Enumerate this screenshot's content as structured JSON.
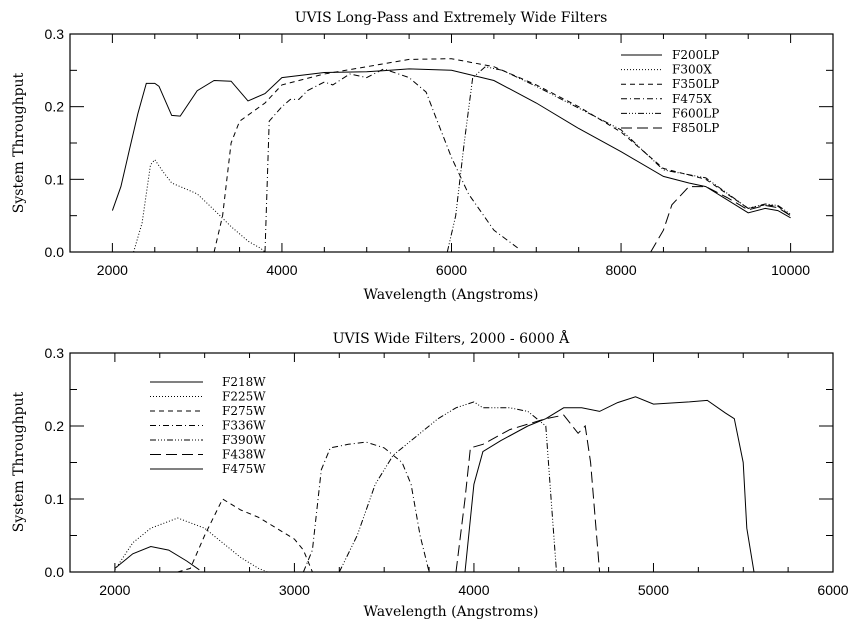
{
  "chart_data": [
    {
      "type": "line",
      "title": "UVIS Long-Pass and Extremely Wide Filters",
      "xlabel": "Wavelength (Angstroms)",
      "ylabel": "System Throughput",
      "xlim": [
        1500,
        10500
      ],
      "ylim": [
        0,
        0.3
      ],
      "xticks": [
        2000,
        4000,
        6000,
        8000,
        10000
      ],
      "xtick_labels": [
        "2000",
        "4000",
        "6000",
        "8000",
        "10000"
      ],
      "yticks": [
        0,
        0.1,
        0.2,
        0.3
      ],
      "ytick_labels": [
        "0.0",
        "0.1",
        "0.2",
        "0.3"
      ],
      "x_minor_step": 500,
      "y_minor_step": 0.05,
      "legend_position": "top-right",
      "series": [
        {
          "name": "F200LP",
          "style": "solid",
          "points": [
            [
              2000,
              0.057
            ],
            [
              2100,
              0.09
            ],
            [
              2200,
              0.14
            ],
            [
              2300,
              0.19
            ],
            [
              2400,
              0.232
            ],
            [
              2500,
              0.232
            ],
            [
              2550,
              0.228
            ],
            [
              2700,
              0.188
            ],
            [
              2800,
              0.187
            ],
            [
              3000,
              0.222
            ],
            [
              3200,
              0.236
            ],
            [
              3400,
              0.235
            ],
            [
              3600,
              0.208
            ],
            [
              3800,
              0.218
            ],
            [
              4000,
              0.24
            ],
            [
              4500,
              0.247
            ],
            [
              5000,
              0.248
            ],
            [
              5500,
              0.252
            ],
            [
              6000,
              0.25
            ],
            [
              6500,
              0.236
            ],
            [
              7000,
              0.205
            ],
            [
              7500,
              0.17
            ],
            [
              8000,
              0.138
            ],
            [
              8500,
              0.104
            ],
            [
              8800,
              0.095
            ],
            [
              9000,
              0.09
            ],
            [
              9500,
              0.054
            ],
            [
              9700,
              0.06
            ],
            [
              9850,
              0.057
            ],
            [
              10000,
              0.047
            ]
          ]
        },
        {
          "name": "F300X",
          "style": "dotted",
          "points": [
            [
              2250,
              0
            ],
            [
              2350,
              0.04
            ],
            [
              2450,
              0.12
            ],
            [
              2500,
              0.127
            ],
            [
              2600,
              0.11
            ],
            [
              2700,
              0.095
            ],
            [
              2900,
              0.085
            ],
            [
              3000,
              0.08
            ],
            [
              3200,
              0.058
            ],
            [
              3400,
              0.035
            ],
            [
              3600,
              0.015
            ],
            [
              3750,
              0.005
            ],
            [
              3800,
              0
            ]
          ]
        },
        {
          "name": "F350LP",
          "style": "dashed",
          "points": [
            [
              3200,
              0
            ],
            [
              3300,
              0.05
            ],
            [
              3400,
              0.15
            ],
            [
              3500,
              0.18
            ],
            [
              3800,
              0.205
            ],
            [
              4000,
              0.23
            ],
            [
              4500,
              0.245
            ],
            [
              5000,
              0.255
            ],
            [
              5500,
              0.265
            ],
            [
              6000,
              0.266
            ],
            [
              6500,
              0.255
            ],
            [
              7000,
              0.23
            ],
            [
              7500,
              0.2
            ],
            [
              8000,
              0.165
            ],
            [
              8500,
              0.115
            ],
            [
              9000,
              0.1
            ],
            [
              9500,
              0.06
            ],
            [
              9700,
              0.065
            ],
            [
              9850,
              0.063
            ],
            [
              10000,
              0.05
            ]
          ]
        },
        {
          "name": "F475X",
          "style": "dash-dot",
          "points": [
            [
              3800,
              0
            ],
            [
              3850,
              0.18
            ],
            [
              4000,
              0.2
            ],
            [
              4100,
              0.21
            ],
            [
              4200,
              0.21
            ],
            [
              4300,
              0.222
            ],
            [
              4500,
              0.234
            ],
            [
              4600,
              0.23
            ],
            [
              4800,
              0.245
            ],
            [
              5000,
              0.24
            ],
            [
              5200,
              0.252
            ],
            [
              5500,
              0.24
            ],
            [
              5700,
              0.22
            ],
            [
              5800,
              0.19
            ],
            [
              6000,
              0.13
            ],
            [
              6200,
              0.08
            ],
            [
              6500,
              0.03
            ],
            [
              6800,
              0.004
            ]
          ]
        },
        {
          "name": "F600LP",
          "style": "dash-dot-dot",
          "points": [
            [
              5950,
              0
            ],
            [
              6050,
              0.05
            ],
            [
              6150,
              0.15
            ],
            [
              6250,
              0.24
            ],
            [
              6400,
              0.255
            ],
            [
              6600,
              0.25
            ],
            [
              7000,
              0.228
            ],
            [
              7500,
              0.198
            ],
            [
              8000,
              0.168
            ],
            [
              8500,
              0.113
            ],
            [
              9000,
              0.102
            ],
            [
              9500,
              0.06
            ],
            [
              9700,
              0.066
            ],
            [
              9850,
              0.064
            ],
            [
              10000,
              0.052
            ]
          ]
        },
        {
          "name": "F850LP",
          "style": "long-dash",
          "points": [
            [
              8350,
              0
            ],
            [
              8500,
              0.03
            ],
            [
              8600,
              0.065
            ],
            [
              8800,
              0.09
            ],
            [
              9000,
              0.09
            ],
            [
              9250,
              0.075
            ],
            [
              9500,
              0.058
            ],
            [
              9700,
              0.064
            ],
            [
              9850,
              0.061
            ],
            [
              10000,
              0.05
            ]
          ]
        }
      ]
    },
    {
      "type": "line",
      "title": "UVIS Wide Filters, 2000 - 6000 Å",
      "xlabel": "Wavelength (Angstroms)",
      "ylabel": "System Throughput",
      "xlim": [
        1750,
        6000
      ],
      "ylim": [
        0,
        0.3
      ],
      "xticks": [
        2000,
        3000,
        4000,
        5000,
        6000
      ],
      "xtick_labels": [
        "2000",
        "3000",
        "4000",
        "5000",
        "6000"
      ],
      "yticks": [
        0,
        0.1,
        0.2,
        0.3
      ],
      "ytick_labels": [
        "0.0",
        "0.1",
        "0.2",
        "0.3"
      ],
      "x_minor_step": 250,
      "y_minor_step": 0.05,
      "legend_position": "top-left",
      "series": [
        {
          "name": "F218W",
          "style": "solid",
          "points": [
            [
              2000,
              0.005
            ],
            [
              2100,
              0.025
            ],
            [
              2200,
              0.035
            ],
            [
              2300,
              0.03
            ],
            [
              2400,
              0.015
            ],
            [
              2470,
              0.003
            ]
          ]
        },
        {
          "name": "F225W",
          "style": "dotted",
          "points": [
            [
              2000,
              0.003
            ],
            [
              2100,
              0.04
            ],
            [
              2200,
              0.06
            ],
            [
              2350,
              0.074
            ],
            [
              2500,
              0.06
            ],
            [
              2600,
              0.04
            ],
            [
              2700,
              0.02
            ],
            [
              2800,
              0.005
            ],
            [
              2850,
              0
            ]
          ]
        },
        {
          "name": "F275W",
          "style": "dashed",
          "points": [
            [
              2350,
              0
            ],
            [
              2420,
              0.005
            ],
            [
              2500,
              0.05
            ],
            [
              2600,
              0.1
            ],
            [
              2700,
              0.085
            ],
            [
              2800,
              0.075
            ],
            [
              2900,
              0.06
            ],
            [
              3000,
              0.045
            ],
            [
              3050,
              0.03
            ],
            [
              3100,
              0
            ]
          ]
        },
        {
          "name": "F336W",
          "style": "dash-dot",
          "points": [
            [
              3050,
              0
            ],
            [
              3100,
              0.03
            ],
            [
              3150,
              0.14
            ],
            [
              3200,
              0.17
            ],
            [
              3300,
              0.175
            ],
            [
              3400,
              0.178
            ],
            [
              3500,
              0.17
            ],
            [
              3600,
              0.15
            ],
            [
              3650,
              0.12
            ],
            [
              3700,
              0.05
            ],
            [
              3750,
              0
            ]
          ]
        },
        {
          "name": "F390W",
          "style": "dash-dot-dot",
          "points": [
            [
              3250,
              0
            ],
            [
              3350,
              0.05
            ],
            [
              3450,
              0.12
            ],
            [
              3550,
              0.16
            ],
            [
              3700,
              0.19
            ],
            [
              3800,
              0.21
            ],
            [
              3900,
              0.225
            ],
            [
              4000,
              0.233
            ],
            [
              4050,
              0.225
            ],
            [
              4200,
              0.225
            ],
            [
              4300,
              0.22
            ],
            [
              4350,
              0.21
            ],
            [
              4400,
              0.2
            ],
            [
              4430,
              0.1
            ],
            [
              4460,
              0
            ]
          ]
        },
        {
          "name": "F438W",
          "style": "long-dash",
          "points": [
            [
              3900,
              0
            ],
            [
              3950,
              0.1
            ],
            [
              3980,
              0.17
            ],
            [
              4050,
              0.175
            ],
            [
              4200,
              0.195
            ],
            [
              4400,
              0.21
            ],
            [
              4500,
              0.215
            ],
            [
              4580,
              0.19
            ],
            [
              4620,
              0.2
            ],
            [
              4650,
              0.15
            ],
            [
              4700,
              0
            ]
          ]
        },
        {
          "name": "F475W",
          "style": "solid",
          "points": [
            [
              3950,
              0
            ],
            [
              4000,
              0.12
            ],
            [
              4050,
              0.165
            ],
            [
              4150,
              0.18
            ],
            [
              4300,
              0.2
            ],
            [
              4400,
              0.21
            ],
            [
              4500,
              0.225
            ],
            [
              4600,
              0.225
            ],
            [
              4700,
              0.22
            ],
            [
              4800,
              0.232
            ],
            [
              4900,
              0.24
            ],
            [
              5000,
              0.23
            ],
            [
              5200,
              0.233
            ],
            [
              5300,
              0.235
            ],
            [
              5400,
              0.218
            ],
            [
              5450,
              0.21
            ],
            [
              5500,
              0.15
            ],
            [
              5520,
              0.06
            ],
            [
              5560,
              0
            ]
          ]
        }
      ]
    }
  ]
}
